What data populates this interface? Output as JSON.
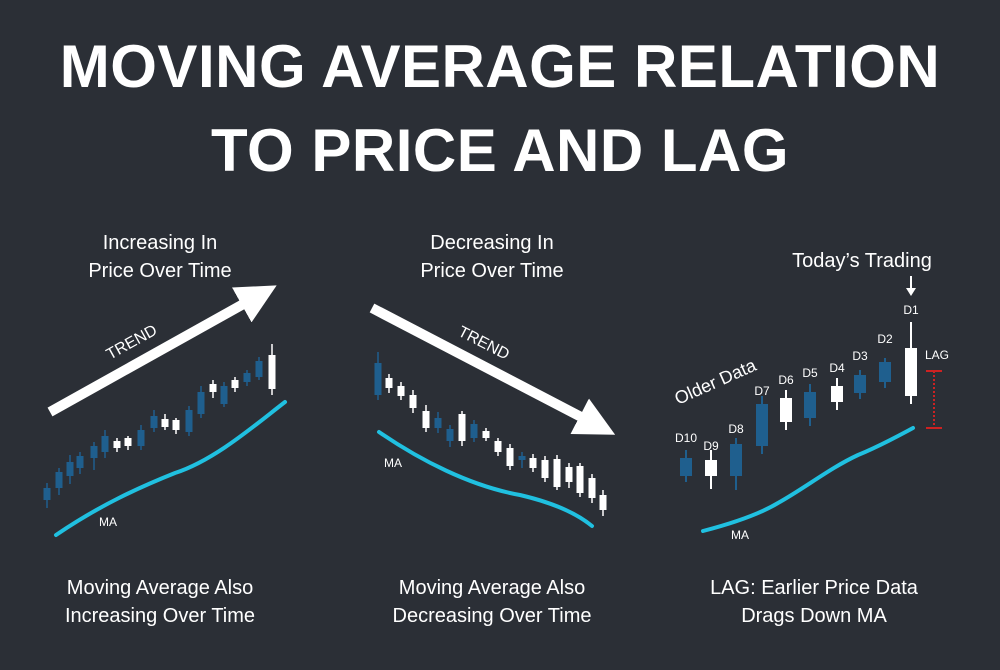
{
  "title": {
    "line1": "MOVING AVERAGE RELATION",
    "line2": "TO PRICE AND LAG"
  },
  "colors": {
    "background": "#2b2f36",
    "bullish_candle": "#1f5f8e",
    "bearish_candle": "#ffffff",
    "ma_line": "#20c0e0",
    "arrow": "#ffffff",
    "lag_marker": "#cc2222"
  },
  "panels": [
    {
      "heading_line1": "Increasing In",
      "heading_line2": "Price Over Time",
      "trend_label": "TREND",
      "ma_label": "MA",
      "caption_line1": "Moving Average Also",
      "caption_line2": "Increasing Over Time"
    },
    {
      "heading_line1": "Decreasing In",
      "heading_line2": "Price Over Time",
      "trend_label": "TREND",
      "ma_label": "MA",
      "caption_line1": "Moving Average Also",
      "caption_line2": "Decreasing Over Time"
    },
    {
      "heading_line1": "Today’s Trading",
      "older_label": "Older Data",
      "lag_label": "LAG",
      "ma_label": "MA",
      "day_labels": [
        "D10",
        "D9",
        "D8",
        "D7",
        "D6",
        "D5",
        "D4",
        "D3",
        "D2",
        "D1"
      ],
      "caption_line1": "LAG: Earlier Price Data",
      "caption_line2": "Drags Down MA"
    }
  ]
}
